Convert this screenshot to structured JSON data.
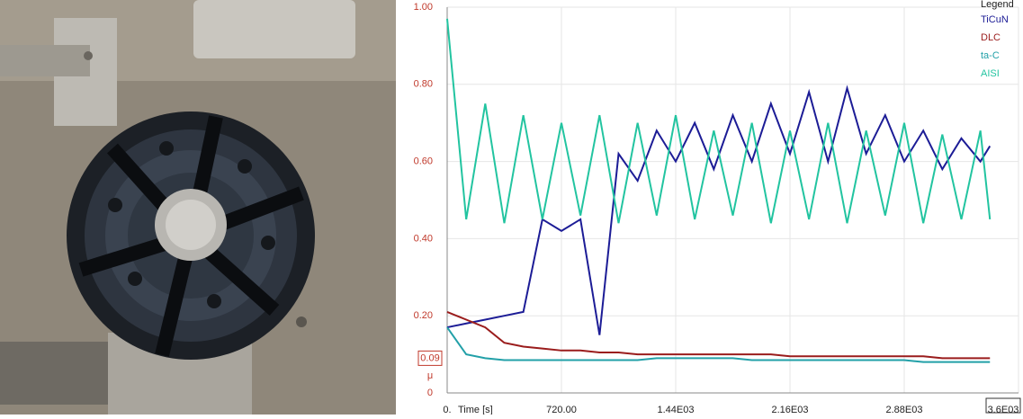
{
  "chart_data": {
    "type": "line",
    "legend_title": "Legend",
    "y_label": "μ",
    "x_label": "Time [s]",
    "y_marker": {
      "value": 0.09,
      "label": "0.09"
    },
    "x": [
      0,
      120,
      240,
      360,
      480,
      600,
      720,
      840,
      960,
      1080,
      1200,
      1320,
      1440,
      1560,
      1680,
      1800,
      1920,
      2040,
      2160,
      2280,
      2400,
      2520,
      2640,
      2760,
      2880,
      3000,
      3120,
      3240,
      3360,
      3420
    ],
    "series": [
      {
        "name": "TiCuN",
        "color": "#1c1c96",
        "values": [
          0.17,
          0.18,
          0.19,
          0.2,
          0.21,
          0.45,
          0.42,
          0.45,
          0.15,
          0.62,
          0.55,
          0.68,
          0.6,
          0.7,
          0.58,
          0.72,
          0.6,
          0.75,
          0.62,
          0.78,
          0.6,
          0.79,
          0.62,
          0.72,
          0.6,
          0.68,
          0.58,
          0.66,
          0.6,
          0.64
        ]
      },
      {
        "name": "DLC",
        "color": "#9a1c1c",
        "values": [
          0.21,
          0.19,
          0.17,
          0.13,
          0.12,
          0.115,
          0.11,
          0.11,
          0.105,
          0.105,
          0.1,
          0.1,
          0.1,
          0.1,
          0.1,
          0.1,
          0.1,
          0.1,
          0.095,
          0.095,
          0.095,
          0.095,
          0.095,
          0.095,
          0.095,
          0.095,
          0.09,
          0.09,
          0.09,
          0.09
        ]
      },
      {
        "name": "ta-C",
        "color": "#22a0a8",
        "values": [
          0.17,
          0.1,
          0.09,
          0.085,
          0.085,
          0.085,
          0.085,
          0.085,
          0.085,
          0.085,
          0.085,
          0.09,
          0.09,
          0.09,
          0.09,
          0.09,
          0.085,
          0.085,
          0.085,
          0.085,
          0.085,
          0.085,
          0.085,
          0.085,
          0.085,
          0.08,
          0.08,
          0.08,
          0.08,
          0.08
        ]
      },
      {
        "name": "AISI",
        "color": "#22c4a0",
        "values": [
          0.97,
          0.45,
          0.75,
          0.44,
          0.72,
          0.45,
          0.7,
          0.46,
          0.72,
          0.44,
          0.7,
          0.46,
          0.72,
          0.45,
          0.68,
          0.46,
          0.7,
          0.44,
          0.68,
          0.45,
          0.7,
          0.44,
          0.68,
          0.46,
          0.7,
          0.44,
          0.67,
          0.45,
          0.68,
          0.45
        ]
      }
    ],
    "xlim": [
      0,
      3600
    ],
    "xticks": [
      {
        "value": 0,
        "label": "0."
      },
      {
        "value": 720,
        "label": "720.00"
      },
      {
        "value": 1440,
        "label": "1.44E03"
      },
      {
        "value": 2160,
        "label": "2.16E03"
      },
      {
        "value": 2880,
        "label": "2.88E03"
      },
      {
        "value": 3600,
        "label": "3.6E03"
      }
    ],
    "ylim": [
      0,
      1
    ],
    "yticks": [
      0,
      {
        "value": 0.2,
        "label": "0.20"
      },
      {
        "value": 0.4,
        "label": "0.40"
      },
      {
        "value": 0.6,
        "label": "0.60"
      },
      {
        "value": 0.8,
        "label": "0.80"
      },
      {
        "value": 1,
        "label": "1.00"
      }
    ],
    "grid": true
  }
}
